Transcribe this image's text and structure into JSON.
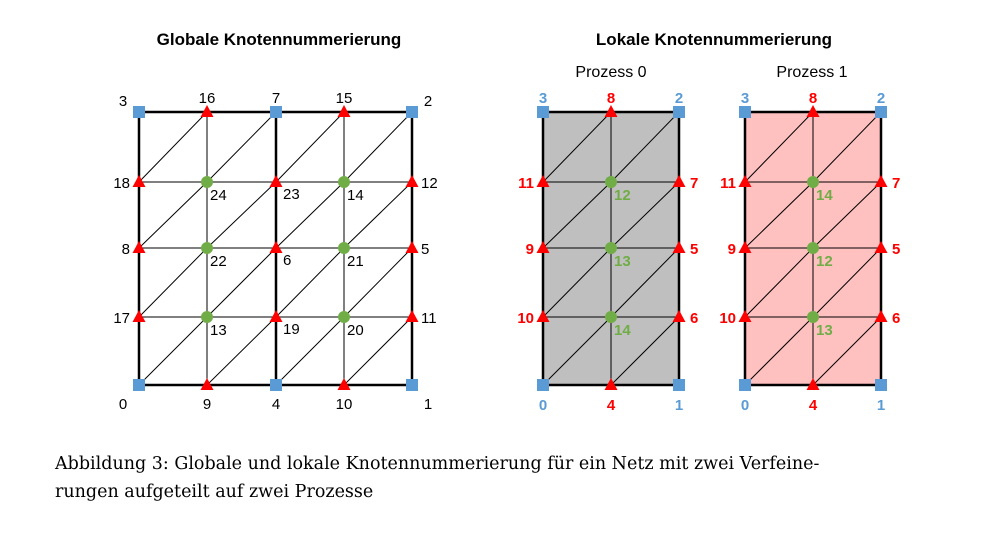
{
  "titles": {
    "global": "Globale Knotennummerierung",
    "local": "Lokale Knotennummerierung",
    "process0": "Prozess 0",
    "process1": "Prozess 1"
  },
  "colors": {
    "corner": "#5b9bd5",
    "edge": "#ff0000",
    "interior": "#70ad47",
    "label_corner": "#5b9bd5",
    "label_edge": "#ff0000",
    "label_interior": "#70ad47",
    "fill_process0": "#bfbfbf",
    "fill_process1": "#ffc0c0"
  },
  "global_mesh": {
    "corners": [
      {
        "label": "3",
        "row": 0,
        "col": 0
      },
      {
        "label": "7",
        "row": 0,
        "col": 2
      },
      {
        "label": "2",
        "row": 0,
        "col": 4
      },
      {
        "label": "0",
        "row": 4,
        "col": 0
      },
      {
        "label": "4",
        "row": 4,
        "col": 2
      },
      {
        "label": "1",
        "row": 4,
        "col": 4
      }
    ],
    "edges": [
      {
        "label": "16",
        "row": 0,
        "col": 1
      },
      {
        "label": "15",
        "row": 0,
        "col": 3
      },
      {
        "label": "18",
        "row": 1,
        "col": 0
      },
      {
        "label": "23",
        "row": 1,
        "col": 2
      },
      {
        "label": "12",
        "row": 1,
        "col": 4
      },
      {
        "label": "8",
        "row": 2,
        "col": 0
      },
      {
        "label": "6",
        "row": 2,
        "col": 2
      },
      {
        "label": "5",
        "row": 2,
        "col": 4
      },
      {
        "label": "17",
        "row": 3,
        "col": 0
      },
      {
        "label": "19",
        "row": 3,
        "col": 2
      },
      {
        "label": "11",
        "row": 3,
        "col": 4
      },
      {
        "label": "9",
        "row": 4,
        "col": 1
      },
      {
        "label": "10",
        "row": 4,
        "col": 3
      }
    ],
    "interiors": [
      {
        "label": "24",
        "row": 1,
        "col": 1
      },
      {
        "label": "14",
        "row": 1,
        "col": 3
      },
      {
        "label": "22",
        "row": 2,
        "col": 1
      },
      {
        "label": "21",
        "row": 2,
        "col": 3
      },
      {
        "label": "13",
        "row": 3,
        "col": 1
      },
      {
        "label": "20",
        "row": 3,
        "col": 3
      }
    ]
  },
  "process0_mesh": {
    "corners": [
      {
        "label": "3",
        "row": 0,
        "col": 0
      },
      {
        "label": "2",
        "row": 0,
        "col": 2
      },
      {
        "label": "0",
        "row": 4,
        "col": 0
      },
      {
        "label": "1",
        "row": 4,
        "col": 2
      }
    ],
    "edges": [
      {
        "label": "8",
        "row": 0,
        "col": 1
      },
      {
        "label": "11",
        "row": 1,
        "col": 0
      },
      {
        "label": "7",
        "row": 1,
        "col": 2
      },
      {
        "label": "9",
        "row": 2,
        "col": 0
      },
      {
        "label": "5",
        "row": 2,
        "col": 2
      },
      {
        "label": "10",
        "row": 3,
        "col": 0
      },
      {
        "label": "6",
        "row": 3,
        "col": 2
      },
      {
        "label": "4",
        "row": 4,
        "col": 1
      }
    ],
    "interiors": [
      {
        "label": "12",
        "row": 1,
        "col": 1
      },
      {
        "label": "13",
        "row": 2,
        "col": 1
      },
      {
        "label": "14",
        "row": 3,
        "col": 1
      }
    ]
  },
  "process1_mesh": {
    "corners": [
      {
        "label": "3",
        "row": 0,
        "col": 0
      },
      {
        "label": "2",
        "row": 0,
        "col": 2
      },
      {
        "label": "0",
        "row": 4,
        "col": 0
      },
      {
        "label": "1",
        "row": 4,
        "col": 2
      }
    ],
    "edges": [
      {
        "label": "8",
        "row": 0,
        "col": 1
      },
      {
        "label": "11",
        "row": 1,
        "col": 0
      },
      {
        "label": "7",
        "row": 1,
        "col": 2
      },
      {
        "label": "9",
        "row": 2,
        "col": 0
      },
      {
        "label": "5",
        "row": 2,
        "col": 2
      },
      {
        "label": "10",
        "row": 3,
        "col": 0
      },
      {
        "label": "6",
        "row": 3,
        "col": 2
      },
      {
        "label": "4",
        "row": 4,
        "col": 1
      }
    ],
    "interiors": [
      {
        "label": "14",
        "row": 1,
        "col": 1
      },
      {
        "label": "12",
        "row": 2,
        "col": 1
      },
      {
        "label": "13",
        "row": 3,
        "col": 1
      }
    ]
  },
  "caption": {
    "line1": "Abbildung 3: Globale und lokale Knotennummerierung für ein Netz mit zwei Verfeine-",
    "line2": "rungen aufgeteilt auf zwei Prozesse"
  }
}
